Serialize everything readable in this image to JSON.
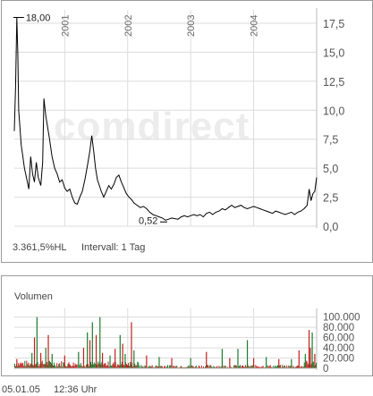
{
  "price_chart": {
    "footer": {
      "performance": "3.361,5%HL",
      "interval": "Intervall: 1 Tag"
    },
    "watermark": "comdirect",
    "annotations": {
      "high_label": "18,00",
      "low_label": "0,52"
    }
  },
  "volume_chart": {
    "title": "Volumen"
  },
  "bottom": {
    "date": "05.01.05",
    "time": "12:36 Uhr"
  },
  "colors": {
    "price_line": "#000000",
    "vol_up": "#1e7a2e",
    "vol_down": "#c0201c",
    "grid": "#dcdcdc"
  },
  "chart_data": [
    {
      "type": "line",
      "title": "",
      "xlabel": "",
      "ylabel": "",
      "x_ticks": [
        "2001",
        "2002",
        "2003",
        "2004"
      ],
      "y_ticks": [
        "0,0",
        "2,5",
        "5,0",
        "7,5",
        "10,0",
        "12,5",
        "15,0",
        "17,5"
      ],
      "ylim": [
        0,
        18.5
      ],
      "xlim": [
        2000.2,
        2005.0
      ],
      "grid": true,
      "series": [
        {
          "x": [
            2000.2,
            2000.22,
            2000.24,
            2000.255,
            2000.27,
            2000.29,
            2000.31,
            2000.33,
            2000.36,
            2000.4,
            2000.43,
            2000.46,
            2000.49,
            2000.52,
            2000.55,
            2000.58,
            2000.62,
            2000.65,
            2000.67,
            2000.7,
            2000.73,
            2000.76,
            2000.8,
            2000.84,
            2000.88,
            2000.92,
            2000.96,
            2001.0,
            2001.04,
            2001.08,
            2001.12,
            2001.16,
            2001.2,
            2001.24,
            2001.28,
            2001.32,
            2001.36,
            2001.4,
            2001.43,
            2001.46,
            2001.49,
            2001.52,
            2001.55,
            2001.58,
            2001.62,
            2001.66,
            2001.7,
            2001.74,
            2001.78,
            2001.82,
            2001.86,
            2001.9,
            2001.94,
            2001.98,
            2002.02,
            2002.06,
            2002.1,
            2002.15,
            2002.2,
            2002.25,
            2002.3,
            2002.35,
            2002.4,
            2002.45,
            2002.5,
            2002.55,
            2002.6,
            2002.65,
            2002.7,
            2002.75,
            2002.8,
            2002.85,
            2002.9,
            2002.95,
            2003.0,
            2003.05,
            2003.1,
            2003.15,
            2003.2,
            2003.25,
            2003.3,
            2003.35,
            2003.4,
            2003.45,
            2003.5,
            2003.55,
            2003.6,
            2003.65,
            2003.7,
            2003.75,
            2003.8,
            2003.85,
            2003.9,
            2003.95,
            2004.0,
            2004.05,
            2004.1,
            2004.15,
            2004.2,
            2004.25,
            2004.3,
            2004.35,
            2004.4,
            2004.45,
            2004.5,
            2004.55,
            2004.6,
            2004.65,
            2004.7,
            2004.75,
            2004.8,
            2004.85,
            2004.88,
            2004.91,
            2004.94,
            2004.97,
            2005.0
          ],
          "values": [
            8.2,
            12.0,
            18.0,
            15.0,
            10.0,
            8.5,
            7.0,
            6.2,
            5.0,
            4.0,
            3.2,
            6.0,
            4.5,
            3.8,
            5.5,
            4.2,
            3.5,
            5.5,
            11.0,
            9.5,
            8.5,
            7.5,
            6.0,
            5.0,
            4.5,
            3.8,
            4.0,
            3.3,
            3.0,
            3.2,
            2.5,
            2.0,
            1.9,
            2.5,
            3.0,
            4.0,
            5.2,
            6.5,
            7.8,
            6.5,
            5.0,
            4.0,
            3.5,
            3.0,
            2.5,
            3.0,
            3.5,
            3.2,
            3.6,
            4.2,
            4.4,
            3.8,
            3.3,
            2.8,
            2.5,
            2.3,
            2.0,
            1.8,
            1.6,
            1.7,
            1.5,
            1.2,
            1.0,
            0.9,
            0.8,
            0.7,
            0.52,
            0.6,
            0.7,
            0.65,
            0.6,
            0.8,
            0.9,
            0.8,
            0.9,
            1.0,
            0.9,
            1.0,
            0.8,
            1.1,
            1.2,
            1.0,
            1.2,
            1.3,
            1.5,
            1.4,
            1.6,
            1.8,
            1.6,
            1.7,
            1.8,
            1.6,
            1.5,
            1.6,
            1.7,
            1.6,
            1.5,
            1.4,
            1.3,
            1.2,
            1.1,
            1.3,
            1.2,
            1.1,
            1.0,
            1.1,
            1.2,
            1.0,
            1.2,
            1.3,
            1.5,
            1.8,
            3.2,
            2.2,
            2.8,
            3.0,
            4.2
          ]
        }
      ]
    },
    {
      "type": "bar",
      "title": "",
      "xlabel": "",
      "ylabel": "",
      "y_ticks": [
        "0",
        "20.000",
        "40.000",
        "60.000",
        "80.000",
        "100.000"
      ],
      "ylim": [
        0,
        110000
      ],
      "xlim": [
        2000.2,
        2005.0
      ],
      "grid": true,
      "spikes": [
        {
          "x": 2000.24,
          "value": 18000,
          "dir": "down"
        },
        {
          "x": 2000.48,
          "value": 30000,
          "dir": "up"
        },
        {
          "x": 2000.52,
          "value": 60000,
          "dir": "down"
        },
        {
          "x": 2000.56,
          "value": 100000,
          "dir": "up"
        },
        {
          "x": 2000.62,
          "value": 30000,
          "dir": "down"
        },
        {
          "x": 2000.7,
          "value": 40000,
          "dir": "up"
        },
        {
          "x": 2000.74,
          "value": 65000,
          "dir": "down"
        },
        {
          "x": 2000.8,
          "value": 28000,
          "dir": "up"
        },
        {
          "x": 2001.0,
          "value": 25000,
          "dir": "down"
        },
        {
          "x": 2001.22,
          "value": 32000,
          "dir": "up"
        },
        {
          "x": 2001.3,
          "value": 40000,
          "dir": "down"
        },
        {
          "x": 2001.36,
          "value": 70000,
          "dir": "up"
        },
        {
          "x": 2001.4,
          "value": 55000,
          "dir": "down"
        },
        {
          "x": 2001.44,
          "value": 90000,
          "dir": "up"
        },
        {
          "x": 2001.5,
          "value": 65000,
          "dir": "down"
        },
        {
          "x": 2001.56,
          "value": 100000,
          "dir": "up"
        },
        {
          "x": 2001.6,
          "value": 30000,
          "dir": "down"
        },
        {
          "x": 2001.72,
          "value": 25000,
          "dir": "up"
        },
        {
          "x": 2001.8,
          "value": 38000,
          "dir": "down"
        },
        {
          "x": 2001.88,
          "value": 65000,
          "dir": "up"
        },
        {
          "x": 2001.92,
          "value": 48000,
          "dir": "down"
        },
        {
          "x": 2001.96,
          "value": 28000,
          "dir": "up"
        },
        {
          "x": 2002.06,
          "value": 90000,
          "dir": "down"
        },
        {
          "x": 2002.1,
          "value": 35000,
          "dir": "up"
        },
        {
          "x": 2002.3,
          "value": 25000,
          "dir": "down"
        },
        {
          "x": 2002.5,
          "value": 22000,
          "dir": "up"
        },
        {
          "x": 2002.7,
          "value": 20000,
          "dir": "down"
        },
        {
          "x": 2003.0,
          "value": 20000,
          "dir": "up"
        },
        {
          "x": 2003.25,
          "value": 32000,
          "dir": "down"
        },
        {
          "x": 2003.5,
          "value": 38000,
          "dir": "up"
        },
        {
          "x": 2003.62,
          "value": 20000,
          "dir": "down"
        },
        {
          "x": 2003.75,
          "value": 38000,
          "dir": "up"
        },
        {
          "x": 2003.9,
          "value": 55000,
          "dir": "up"
        },
        {
          "x": 2004.0,
          "value": 20000,
          "dir": "down"
        },
        {
          "x": 2004.2,
          "value": 22000,
          "dir": "up"
        },
        {
          "x": 2004.4,
          "value": 18000,
          "dir": "down"
        },
        {
          "x": 2004.6,
          "value": 18000,
          "dir": "up"
        },
        {
          "x": 2004.72,
          "value": 35000,
          "dir": "down"
        },
        {
          "x": 2004.82,
          "value": 28000,
          "dir": "up"
        },
        {
          "x": 2004.88,
          "value": 75000,
          "dir": "down"
        },
        {
          "x": 2004.9,
          "value": 40000,
          "dir": "down"
        },
        {
          "x": 2004.93,
          "value": 70000,
          "dir": "up"
        },
        {
          "x": 2004.97,
          "value": 28000,
          "dir": "down"
        }
      ]
    }
  ]
}
